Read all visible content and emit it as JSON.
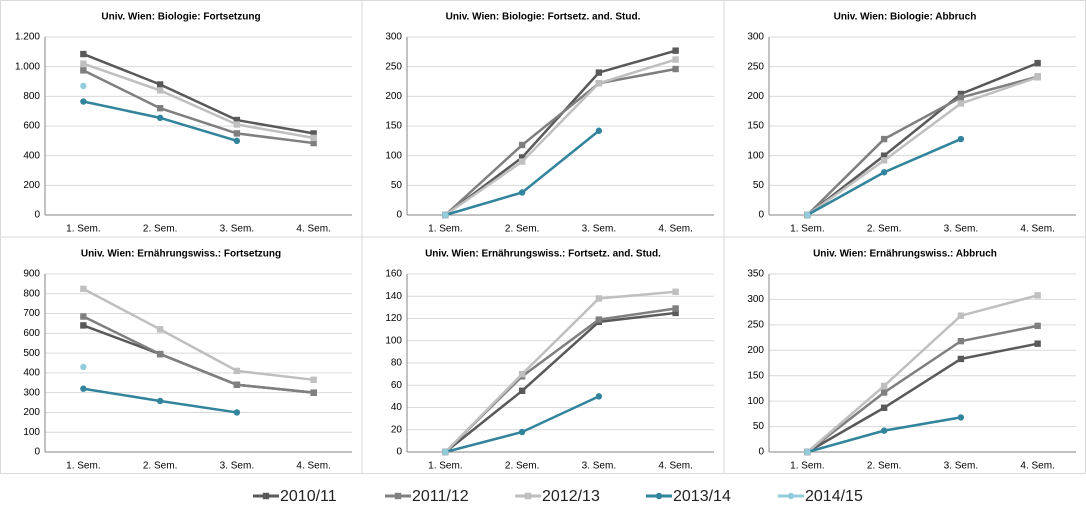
{
  "legend": [
    {
      "name": "2010/11",
      "color": "#595959",
      "marker": "square"
    },
    {
      "name": "2011/12",
      "color": "#7f7f7f",
      "marker": "square"
    },
    {
      "name": "2012/13",
      "color": "#bfbfbf",
      "marker": "square"
    },
    {
      "name": "2013/14",
      "color": "#31849b",
      "marker": "circle"
    },
    {
      "name": "2014/15",
      "color": "#93cddd",
      "marker": "circle"
    }
  ],
  "chart_data": [
    {
      "type": "line",
      "title": "Univ. Wien: Biologie: Fortsetzung",
      "categories": [
        "1. Sem.",
        "2. Sem.",
        "3. Sem.",
        "4. Sem."
      ],
      "ylim": [
        0,
        1200
      ],
      "yticks": [
        0,
        200,
        400,
        600,
        800,
        {
          "value": 1000,
          "label": "1.000"
        },
        {
          "value": 1200,
          "label": "1.200"
        }
      ],
      "grid": true,
      "series": [
        {
          "values": [
            1085,
            880,
            640,
            550
          ]
        },
        {
          "values": [
            975,
            720,
            550,
            485
          ]
        },
        {
          "values": [
            1020,
            840,
            610,
            520
          ]
        },
        {
          "values": [
            765,
            655,
            500,
            null
          ]
        },
        {
          "values": [
            870,
            null,
            null,
            null
          ]
        }
      ]
    },
    {
      "type": "line",
      "title": "Univ. Wien: Biologie: Fortsetz. and. Stud.",
      "categories": [
        "1. Sem.",
        "2. Sem.",
        "3. Sem.",
        "4. Sem."
      ],
      "ylim": [
        0,
        300
      ],
      "yticks": [
        0,
        50,
        100,
        150,
        200,
        250,
        300
      ],
      "grid": true,
      "series": [
        {
          "values": [
            0,
            97,
            240,
            277
          ]
        },
        {
          "values": [
            0,
            118,
            222,
            246
          ]
        },
        {
          "values": [
            0,
            90,
            222,
            262
          ]
        },
        {
          "values": [
            0,
            38,
            142,
            null
          ]
        },
        {
          "values": [
            0,
            null,
            null,
            null
          ]
        }
      ]
    },
    {
      "type": "line",
      "title": "Univ. Wien: Biologie: Abbruch",
      "categories": [
        "1. Sem.",
        "2. Sem.",
        "3. Sem.",
        "4. Sem."
      ],
      "ylim": [
        0,
        300
      ],
      "yticks": [
        0,
        50,
        100,
        150,
        200,
        250,
        300
      ],
      "grid": true,
      "series": [
        {
          "values": [
            0,
            100,
            204,
            256
          ]
        },
        {
          "values": [
            0,
            128,
            198,
            233
          ]
        },
        {
          "values": [
            0,
            92,
            188,
            232
          ]
        },
        {
          "values": [
            0,
            72,
            128,
            null
          ]
        },
        {
          "values": [
            0,
            null,
            null,
            null
          ]
        }
      ]
    },
    {
      "type": "line",
      "title": "Univ. Wien: Ernährungswiss.: Fortsetzung",
      "categories": [
        "1. Sem.",
        "2. Sem.",
        "3. Sem.",
        "4. Sem."
      ],
      "ylim": [
        0,
        900
      ],
      "yticks": [
        0,
        100,
        200,
        300,
        400,
        500,
        600,
        700,
        800,
        900
      ],
      "grid": true,
      "series": [
        {
          "values": [
            640,
            495,
            340,
            300
          ]
        },
        {
          "values": [
            685,
            495,
            340,
            300
          ]
        },
        {
          "values": [
            825,
            620,
            410,
            365
          ]
        },
        {
          "values": [
            320,
            258,
            200,
            null
          ]
        },
        {
          "values": [
            430,
            null,
            null,
            null
          ]
        }
      ]
    },
    {
      "type": "line",
      "title": "Univ. Wien: Ernährungswiss.: Fortsetz. and. Stud.",
      "categories": [
        "1. Sem.",
        "2. Sem.",
        "3. Sem.",
        "4. Sem."
      ],
      "ylim": [
        0,
        160
      ],
      "yticks": [
        0,
        20,
        40,
        60,
        80,
        100,
        120,
        140,
        160
      ],
      "grid": true,
      "series": [
        {
          "values": [
            0,
            55,
            117,
            125
          ]
        },
        {
          "values": [
            0,
            68,
            119,
            129
          ]
        },
        {
          "values": [
            0,
            70,
            138,
            144
          ]
        },
        {
          "values": [
            0,
            18,
            50,
            null
          ]
        },
        {
          "values": [
            0,
            null,
            null,
            null
          ]
        }
      ]
    },
    {
      "type": "line",
      "title": "Univ. Wien: Ernährungswiss.: Abbruch",
      "categories": [
        "1. Sem.",
        "2. Sem.",
        "3. Sem.",
        "4. Sem."
      ],
      "ylim": [
        0,
        350
      ],
      "yticks": [
        0,
        50,
        100,
        150,
        200,
        250,
        300,
        350
      ],
      "grid": true,
      "series": [
        {
          "values": [
            0,
            87,
            183,
            213
          ]
        },
        {
          "values": [
            0,
            117,
            218,
            248
          ]
        },
        {
          "values": [
            0,
            130,
            268,
            308
          ]
        },
        {
          "values": [
            0,
            42,
            68,
            null
          ]
        },
        {
          "values": [
            0,
            null,
            null,
            null
          ]
        }
      ]
    }
  ]
}
